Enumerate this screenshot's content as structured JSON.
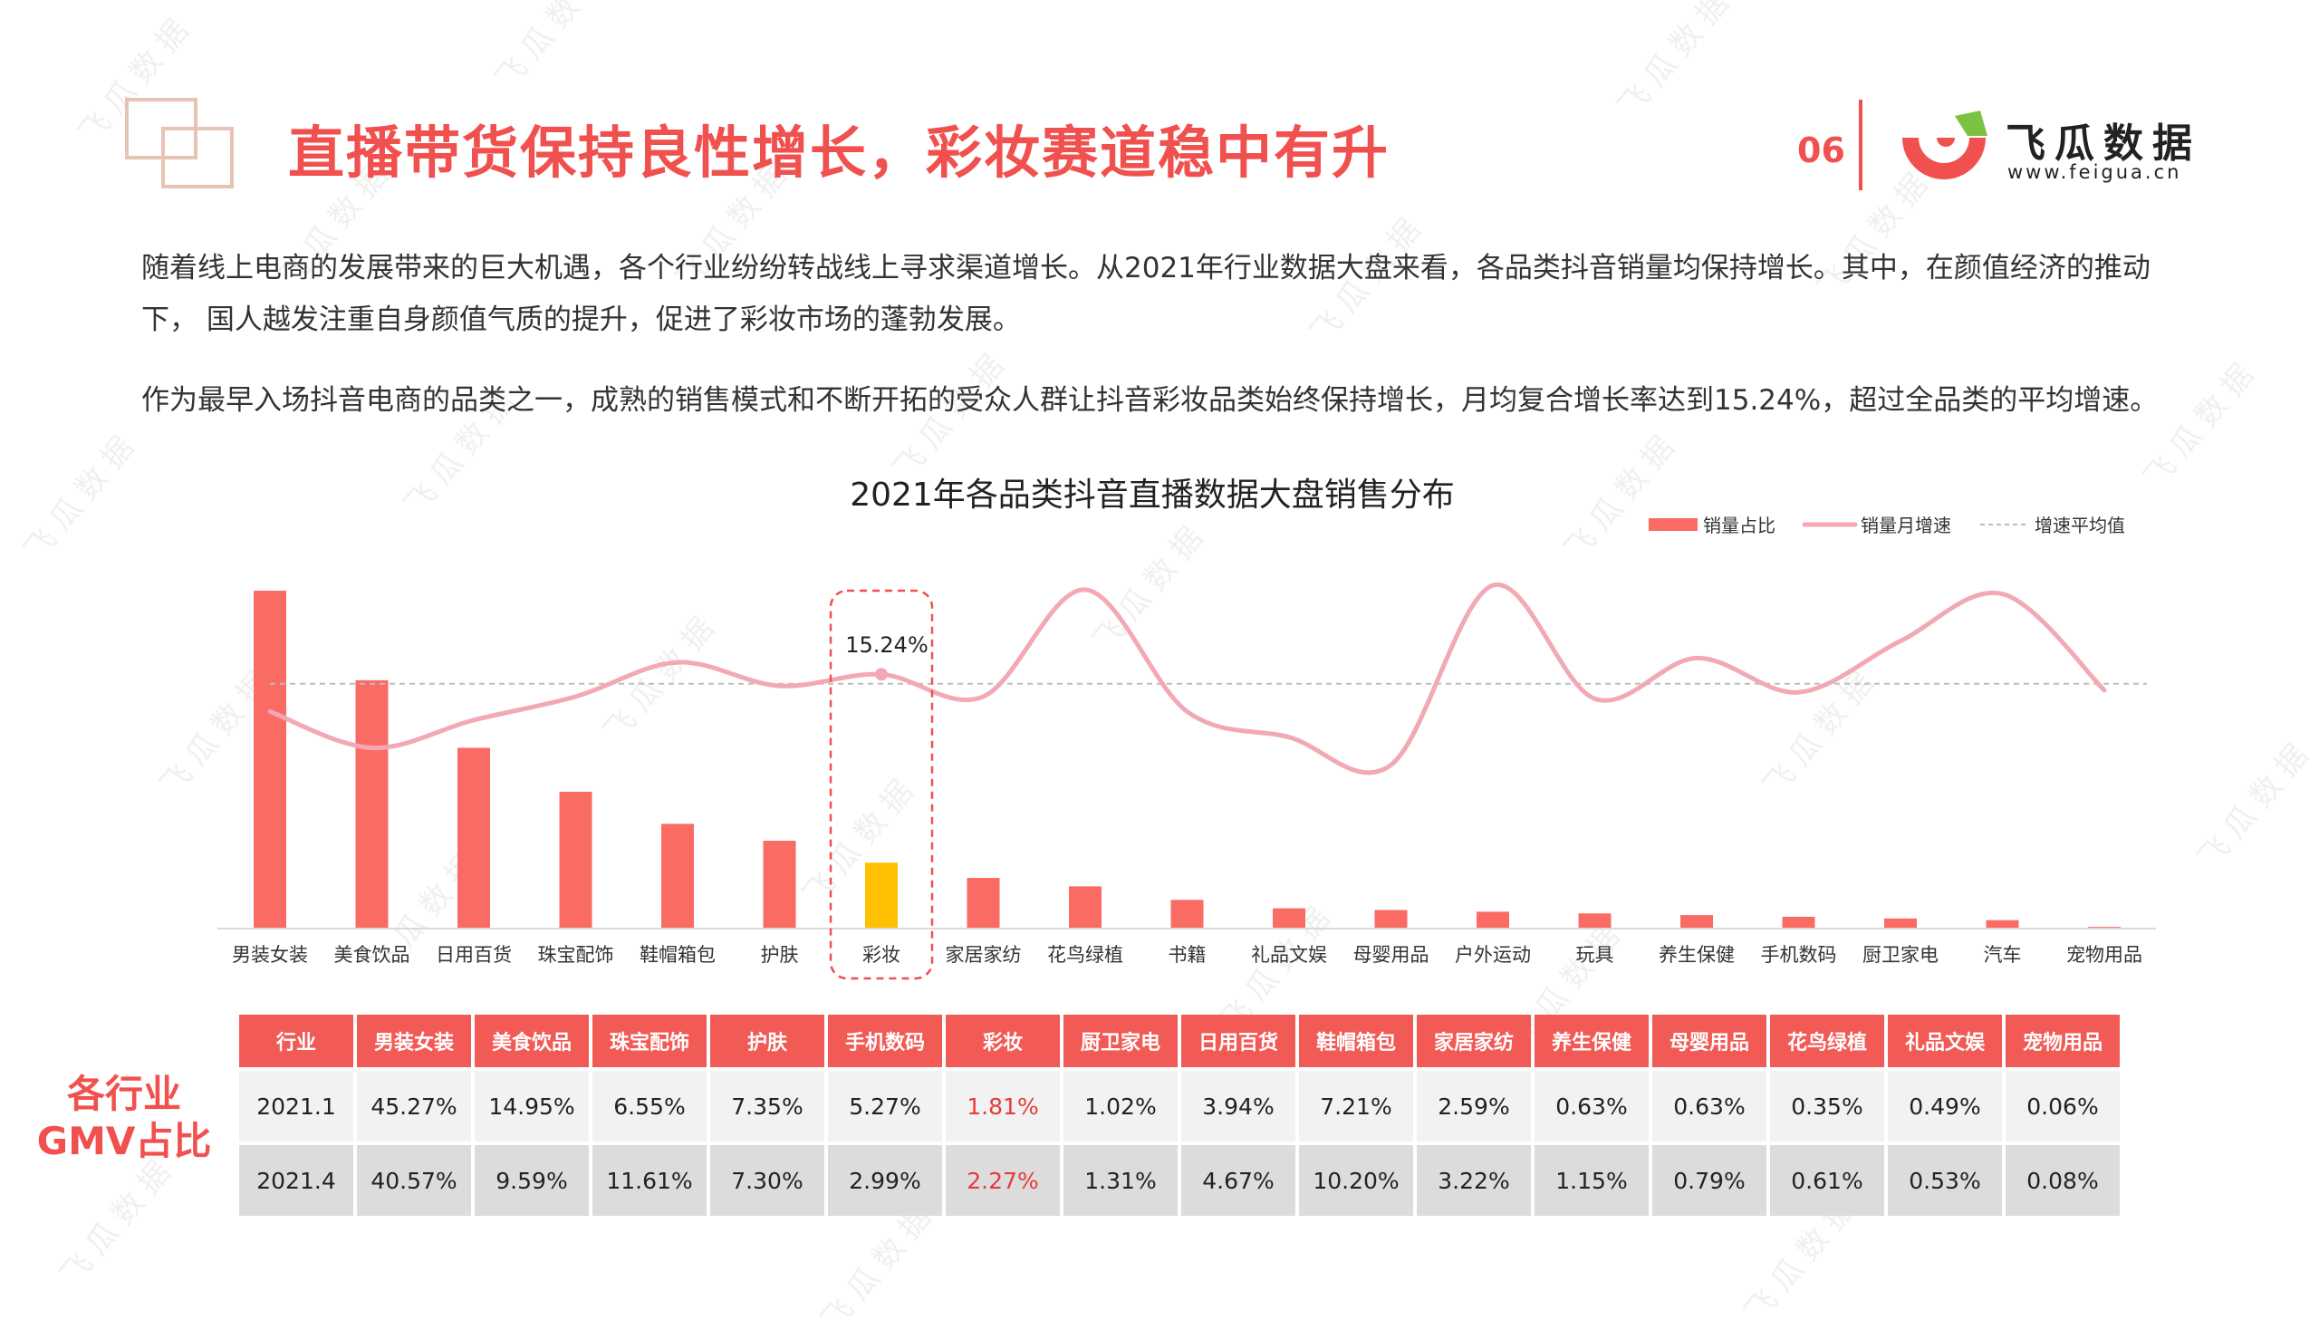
{
  "header": {
    "title": "直播带货保持良性增长，彩妆赛道稳中有升",
    "page_number": "06",
    "brand_name": "飞瓜数据",
    "brand_url": "www.feigua.cn"
  },
  "paragraphs": [
    "随着线上电商的发展带来的巨大机遇，各个行业纷纷转战线上寻求渠道增长。从2021年行业数据大盘来看，各品类抖音销量均保持增长。其中，在颜值经济的推动下， 国人越发注重自身颜值气质的提升，促进了彩妆市场的蓬勃发展。",
    "作为最早入场抖音电商的品类之一，成熟的销售模式和不断开拓的受众人群让抖音彩妆品类始终保持增长，月均复合增长率达到15.24%，超过全品类的平均增速。"
  ],
  "watermark": "飞瓜数据",
  "colors": {
    "accent": "#F0504E",
    "bar": "#FA6B63",
    "highlight_bar": "#FFC000",
    "line": "#F2A9B3",
    "avg_line": "#BDBDBD"
  },
  "chart_data": {
    "type": "bar",
    "title": "2021年各品类抖音直播数据大盘销售分布",
    "categories": [
      "男装女装",
      "美食饮品",
      "日用百货",
      "珠宝配饰",
      "鞋帽箱包",
      "护肤",
      "彩妆",
      "家居家纺",
      "花鸟绿植",
      "书籍",
      "礼品文娱",
      "母婴用品",
      "户外运动",
      "玩具",
      "养生保健",
      "手机数码",
      "厨卫家电",
      "汽车",
      "宠物用品"
    ],
    "series": [
      {
        "name": "销量占比",
        "type": "bar",
        "values": [
          100,
          73.5,
          53.5,
          40.5,
          31,
          26,
          19.5,
          15,
          12.5,
          8.5,
          6,
          5.5,
          5,
          4.5,
          4,
          3.5,
          3,
          2.5,
          0.5
        ],
        "highlight_index": 6
      },
      {
        "name": "销量月增速",
        "type": "line",
        "smooth": true,
        "values": [
          13.5,
          11.8,
          13.1,
          14.2,
          15.8,
          14.7,
          15.24,
          14.2,
          19.2,
          13.5,
          12.3,
          11.0,
          19.4,
          14.1,
          16.0,
          14.4,
          16.8,
          19.0,
          14.5
        ]
      },
      {
        "name": "增速平均值",
        "type": "dashed",
        "value": 14.8
      }
    ],
    "annotation": {
      "label": "15.24%",
      "category": "彩妆"
    },
    "legend_position": "top-right",
    "grid": false
  },
  "gmv_table": {
    "side_label": [
      "各行业",
      "GMV占比"
    ],
    "headers": [
      "行业",
      "男装女装",
      "美食饮品",
      "珠宝配饰",
      "护肤",
      "手机数码",
      "彩妆",
      "厨卫家电",
      "日用百货",
      "鞋帽箱包",
      "家居家纺",
      "养生保健",
      "母婴用品",
      "花鸟绿植",
      "礼品文娱",
      "宠物用品"
    ],
    "rows": [
      [
        "2021.1",
        "45.27%",
        "14.95%",
        "6.55%",
        "7.35%",
        "5.27%",
        "1.81%",
        "1.02%",
        "3.94%",
        "7.21%",
        "2.59%",
        "0.63%",
        "0.63%",
        "0.35%",
        "0.49%",
        "0.06%"
      ],
      [
        "2021.4",
        "40.57%",
        "9.59%",
        "11.61%",
        "7.30%",
        "2.99%",
        "2.27%",
        "1.31%",
        "4.67%",
        "10.20%",
        "3.22%",
        "1.15%",
        "0.79%",
        "0.61%",
        "0.53%",
        "0.08%"
      ]
    ],
    "highlight_column": 6
  }
}
